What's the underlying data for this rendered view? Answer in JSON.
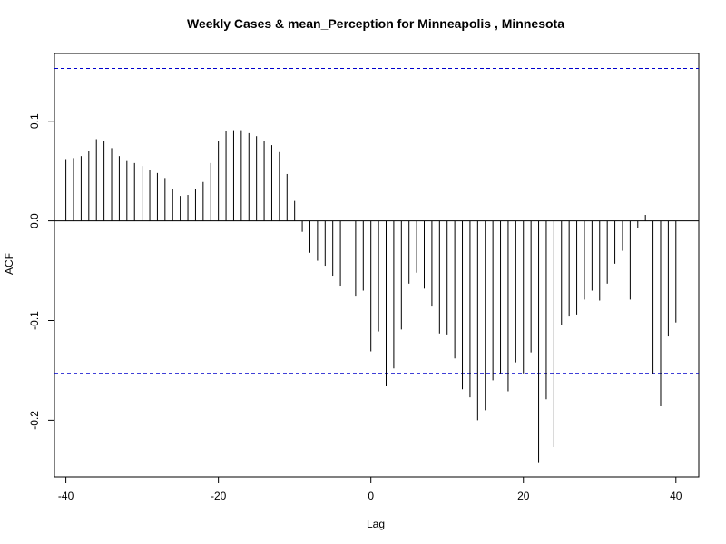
{
  "chart_data": {
    "type": "bar",
    "title": "Weekly Cases & mean_Perception for Minneapolis , Minnesota",
    "xlabel": "Lag",
    "ylabel": "ACF",
    "xlim": [
      -41.5,
      43.0
    ],
    "ylim": [
      -0.257,
      0.168
    ],
    "x_ticks": [
      -40,
      -20,
      0,
      20,
      40
    ],
    "x_tick_labels": [
      "-40",
      "-20",
      "0",
      "20",
      "40"
    ],
    "y_ticks": [
      -0.2,
      -0.1,
      0.0,
      0.1
    ],
    "y_tick_labels": [
      "-0.2",
      "-0.1",
      "0.0",
      "0.1"
    ],
    "confidence_bound": 0.153,
    "lags": [
      -40,
      -39,
      -38,
      -37,
      -36,
      -35,
      -34,
      -33,
      -32,
      -31,
      -30,
      -29,
      -28,
      -27,
      -26,
      -25,
      -24,
      -23,
      -22,
      -21,
      -20,
      -19,
      -18,
      -17,
      -16,
      -15,
      -14,
      -13,
      -12,
      -11,
      -10,
      -9,
      -8,
      -7,
      -6,
      -5,
      -4,
      -3,
      -2,
      -1,
      0,
      1,
      2,
      3,
      4,
      5,
      6,
      7,
      8,
      9,
      10,
      11,
      12,
      13,
      14,
      15,
      16,
      17,
      18,
      19,
      20,
      21,
      22,
      23,
      24,
      25,
      26,
      27,
      28,
      29,
      30,
      31,
      32,
      33,
      34,
      35,
      36,
      37,
      38,
      39,
      40
    ],
    "values": [
      0.062,
      0.063,
      0.065,
      0.07,
      0.082,
      0.08,
      0.073,
      0.065,
      0.06,
      0.058,
      0.055,
      0.051,
      0.048,
      0.043,
      0.032,
      0.025,
      0.026,
      0.032,
      0.039,
      0.058,
      0.08,
      0.09,
      0.091,
      0.091,
      0.088,
      0.085,
      0.08,
      0.076,
      0.069,
      0.047,
      0.02,
      -0.011,
      -0.032,
      -0.04,
      -0.045,
      -0.055,
      -0.065,
      -0.072,
      -0.076,
      -0.07,
      -0.131,
      -0.111,
      -0.166,
      -0.148,
      -0.109,
      -0.063,
      -0.052,
      -0.068,
      -0.086,
      -0.113,
      -0.114,
      -0.138,
      -0.169,
      -0.177,
      -0.2,
      -0.19,
      -0.16,
      -0.153,
      -0.171,
      -0.142,
      -0.153,
      -0.132,
      -0.243,
      -0.179,
      -0.227,
      -0.105,
      -0.096,
      -0.094,
      -0.079,
      -0.07,
      -0.08,
      -0.063,
      -0.043,
      -0.03,
      -0.079,
      -0.007,
      0.006,
      -0.153,
      -0.186,
      -0.116,
      -0.102
    ],
    "colors": {
      "bars": "#000000",
      "ci": "#0000cc",
      "zero": "#000000",
      "frame": "#000000"
    },
    "grid": false
  }
}
